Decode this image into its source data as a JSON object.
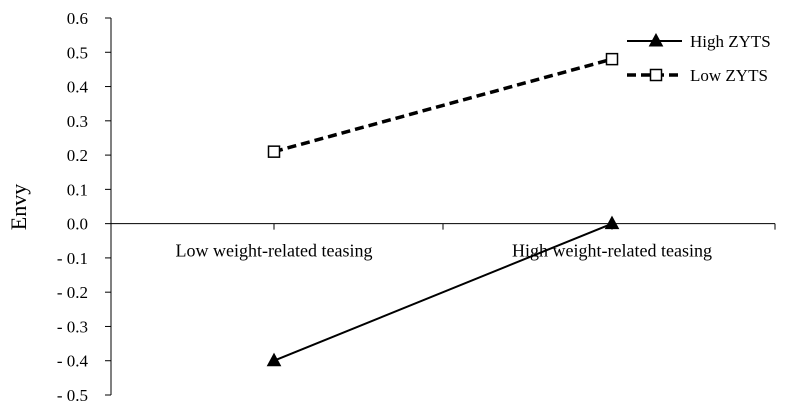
{
  "chart_data": {
    "type": "line",
    "categories": [
      "Low weight-related teasing",
      "High weight-related teasing"
    ],
    "series": [
      {
        "name": "High ZYTS",
        "values": [
          -0.4,
          0.0
        ],
        "marker": "filled-triangle",
        "line": "solid",
        "color": "#000000"
      },
      {
        "name": "Low ZYTS",
        "values": [
          0.21,
          0.48
        ],
        "marker": "open-square",
        "line": "dashed",
        "color": "#000000"
      }
    ],
    "title": "",
    "xlabel": "",
    "ylabel": "Envy",
    "ylim": [
      -0.5,
      0.6
    ],
    "yticks": [
      0.6,
      0.5,
      0.4,
      0.3,
      0.2,
      0.1,
      0.0,
      -0.1,
      -0.2,
      -0.3,
      -0.4,
      -0.5
    ],
    "ytick_labels": [
      "0.6",
      "0.5",
      "0.4",
      "0.3",
      "0.2",
      "0.1",
      "0.0",
      "- 0.1",
      "- 0.2",
      "- 0.3",
      "- 0.4",
      "- 0.5"
    ],
    "grid": false,
    "legend": "top-right"
  }
}
